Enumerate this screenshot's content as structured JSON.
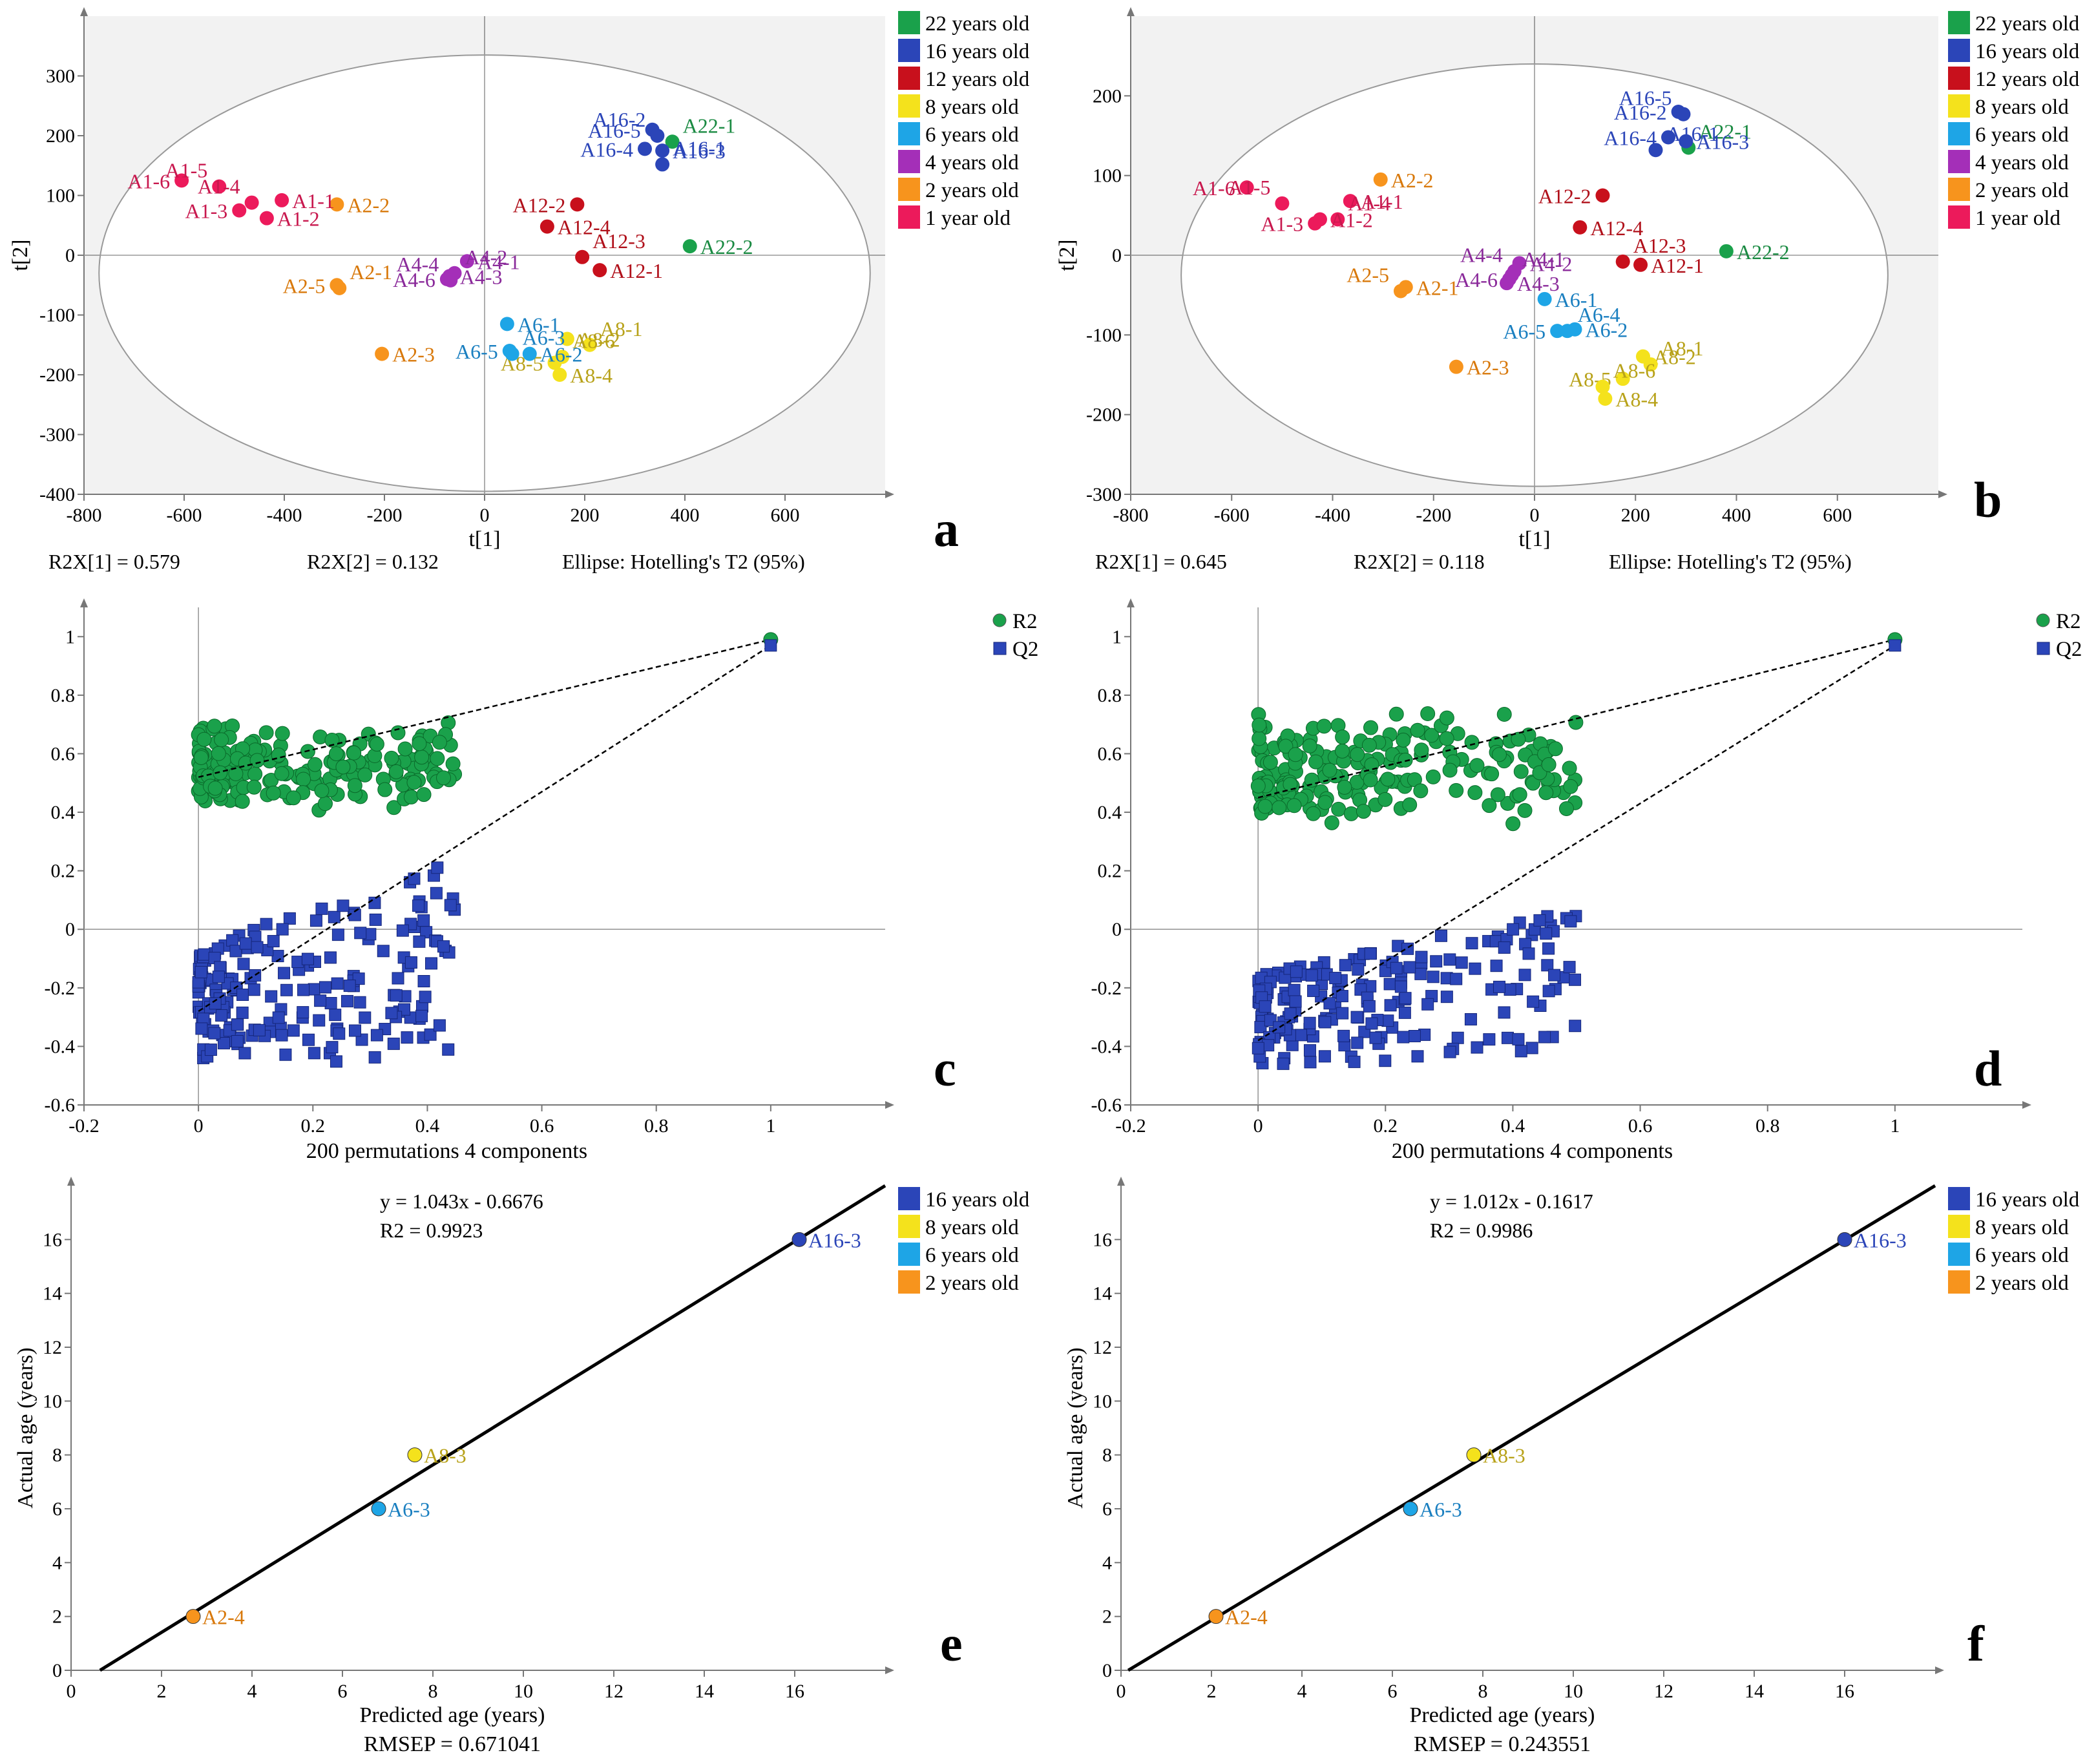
{
  "colors": {
    "y22": "#1aa14b",
    "y16": "#2b45b8",
    "y12": "#c8101c",
    "y8": "#f4e21c",
    "y6": "#1ea5e6",
    "y4": "#a42fb8",
    "y2": "#f7941d",
    "y1": "#ec1a5b",
    "R2": "#1aa14b",
    "Q2": "#2b45b8"
  },
  "chart_data": [
    {
      "panel": "a",
      "type": "scatter",
      "xlabel": "t[1]",
      "ylabel": "t[2]",
      "xlim": [
        -800,
        800
      ],
      "ylim": [
        -400,
        400
      ],
      "xticks": [
        -800,
        -600,
        -400,
        -200,
        0,
        200,
        400,
        600
      ],
      "yticks": [
        -400,
        -300,
        -200,
        -100,
        0,
        100,
        200,
        300
      ],
      "ellipse": {
        "cx": 0,
        "cy": -30,
        "rx": 770,
        "ry": 365
      },
      "stats": [
        "R2X[1] = 0.579",
        "R2X[2] = 0.132",
        "Ellipse: Hotelling's T2 (95%)"
      ],
      "legend": [
        {
          "label": "22 years old",
          "color": "#1aa14b"
        },
        {
          "label": "16 years old",
          "color": "#2b45b8"
        },
        {
          "label": "12 years old",
          "color": "#c8101c"
        },
        {
          "label": "8 years old",
          "color": "#f4e21c"
        },
        {
          "label": "6 years old",
          "color": "#1ea5e6"
        },
        {
          "label": "4 years old",
          "color": "#a42fb8"
        },
        {
          "label": "2 years old",
          "color": "#f7941d"
        },
        {
          "label": "1 year old",
          "color": "#ec1a5b"
        }
      ],
      "points": [
        {
          "label": "A22-1",
          "x": 375,
          "y": 190,
          "g": "y22"
        },
        {
          "label": "A22-2",
          "x": 410,
          "y": 15,
          "g": "y22"
        },
        {
          "label": "A16-5",
          "x": 335,
          "y": 210,
          "g": "y16"
        },
        {
          "label": "A16-2",
          "x": 345,
          "y": 200,
          "g": "y16"
        },
        {
          "label": "A16-4",
          "x": 320,
          "y": 178,
          "g": "y16"
        },
        {
          "label": "A16-3",
          "x": 355,
          "y": 175,
          "g": "y16"
        },
        {
          "label": "A16-1",
          "x": 355,
          "y": 152,
          "g": "y16"
        },
        {
          "label": "A12-2",
          "x": 185,
          "y": 85,
          "g": "y12"
        },
        {
          "label": "A12-4",
          "x": 125,
          "y": 48,
          "g": "y12"
        },
        {
          "label": "A12-3",
          "x": 195,
          "y": -3,
          "g": "y12"
        },
        {
          "label": "A12-1",
          "x": 230,
          "y": -25,
          "g": "y12"
        },
        {
          "label": "A8-2",
          "x": 165,
          "y": -140,
          "g": "y8"
        },
        {
          "label": "A8-1",
          "x": 210,
          "y": -150,
          "g": "y8"
        },
        {
          "label": "A8-5",
          "x": 140,
          "y": -180,
          "g": "y8"
        },
        {
          "label": "A8-4",
          "x": 150,
          "y": -200,
          "g": "y8"
        },
        {
          "label": "A8-6",
          "x": 155,
          "y": -170,
          "g": "y8"
        },
        {
          "label": "A6-1",
          "x": 45,
          "y": -115,
          "g": "y6"
        },
        {
          "label": "A6-2",
          "x": 90,
          "y": -165,
          "g": "y6"
        },
        {
          "label": "A6-3",
          "x": 55,
          "y": -165,
          "g": "y6"
        },
        {
          "label": "A6-5",
          "x": 50,
          "y": -160,
          "g": "y6"
        },
        {
          "label": "A4-1",
          "x": -35,
          "y": -10,
          "g": "y4"
        },
        {
          "label": "A4-2",
          "x": -60,
          "y": -30,
          "g": "y4"
        },
        {
          "label": "A4-3",
          "x": -70,
          "y": -35,
          "g": "y4"
        },
        {
          "label": "A4-6",
          "x": -75,
          "y": -40,
          "g": "y4"
        },
        {
          "label": "A4-4",
          "x": -68,
          "y": -42,
          "g": "y4"
        },
        {
          "label": "A2-2",
          "x": -295,
          "y": 85,
          "g": "y2"
        },
        {
          "label": "A2-5",
          "x": -295,
          "y": -50,
          "g": "y2"
        },
        {
          "label": "A2-1",
          "x": -290,
          "y": -55,
          "g": "y2"
        },
        {
          "label": "A2-3",
          "x": -205,
          "y": -165,
          "g": "y2"
        },
        {
          "label": "A1-6",
          "x": -605,
          "y": 125,
          "g": "y1"
        },
        {
          "label": "A1-5",
          "x": -530,
          "y": 115,
          "g": "y1"
        },
        {
          "label": "A1-1",
          "x": -405,
          "y": 92,
          "g": "y1"
        },
        {
          "label": "A1-3",
          "x": -490,
          "y": 75,
          "g": "y1"
        },
        {
          "label": "A1-4",
          "x": -465,
          "y": 88,
          "g": "y1"
        },
        {
          "label": "A1-2",
          "x": -435,
          "y": 62,
          "g": "y1"
        }
      ]
    },
    {
      "panel": "b",
      "type": "scatter",
      "xlabel": "t[1]",
      "ylabel": "t[2]",
      "xlim": [
        -800,
        800
      ],
      "ylim": [
        -300,
        300
      ],
      "xticks": [
        -800,
        -600,
        -400,
        -200,
        0,
        200,
        400,
        600
      ],
      "yticks": [
        -300,
        -200,
        -100,
        0,
        100,
        200
      ],
      "ellipse": {
        "cx": 0,
        "cy": -25,
        "rx": 700,
        "ry": 265
      },
      "stats": [
        "R2X[1] = 0.645",
        "R2X[2] = 0.118",
        "Ellipse: Hotelling's T2 (95%)"
      ],
      "legend": [
        {
          "label": "22 years old",
          "color": "#1aa14b"
        },
        {
          "label": "16 years old",
          "color": "#2b45b8"
        },
        {
          "label": "12 years old",
          "color": "#c8101c"
        },
        {
          "label": "8 years old",
          "color": "#f4e21c"
        },
        {
          "label": "6 years old",
          "color": "#1ea5e6"
        },
        {
          "label": "4 years old",
          "color": "#a42fb8"
        },
        {
          "label": "2 years old",
          "color": "#f7941d"
        },
        {
          "label": "1 year old",
          "color": "#ec1a5b"
        }
      ],
      "points": [
        {
          "label": "A22-1",
          "x": 305,
          "y": 135,
          "g": "y22"
        },
        {
          "label": "A22-2",
          "x": 380,
          "y": 5,
          "g": "y22"
        },
        {
          "label": "A16-2",
          "x": 285,
          "y": 180,
          "g": "y16"
        },
        {
          "label": "A16-5",
          "x": 295,
          "y": 177,
          "g": "y16"
        },
        {
          "label": "A16-4",
          "x": 265,
          "y": 148,
          "g": "y16"
        },
        {
          "label": "A16-3",
          "x": 300,
          "y": 143,
          "g": "y16"
        },
        {
          "label": "A16-1",
          "x": 240,
          "y": 132,
          "g": "y16"
        },
        {
          "label": "A12-2",
          "x": 135,
          "y": 75,
          "g": "y12"
        },
        {
          "label": "A12-4",
          "x": 90,
          "y": 35,
          "g": "y12"
        },
        {
          "label": "A12-3",
          "x": 175,
          "y": -8,
          "g": "y12"
        },
        {
          "label": "A12-1",
          "x": 210,
          "y": -12,
          "g": "y12"
        },
        {
          "label": "A8-2",
          "x": 215,
          "y": -127,
          "g": "y8"
        },
        {
          "label": "A8-1",
          "x": 230,
          "y": -137,
          "g": "y8"
        },
        {
          "label": "A8-5",
          "x": 175,
          "y": -155,
          "g": "y8"
        },
        {
          "label": "A8-4",
          "x": 140,
          "y": -180,
          "g": "y8"
        },
        {
          "label": "A8-6",
          "x": 135,
          "y": -165,
          "g": "y8"
        },
        {
          "label": "A6-1",
          "x": 20,
          "y": -55,
          "g": "y6"
        },
        {
          "label": "A6-2",
          "x": 80,
          "y": -93,
          "g": "y6"
        },
        {
          "label": "A6-4",
          "x": 65,
          "y": -95,
          "g": "y6"
        },
        {
          "label": "A6-5",
          "x": 45,
          "y": -95,
          "g": "y6"
        },
        {
          "label": "A4-2",
          "x": -30,
          "y": -10,
          "g": "y4"
        },
        {
          "label": "A4-1",
          "x": -45,
          "y": -25,
          "g": "y4"
        },
        {
          "label": "A4-3",
          "x": -55,
          "y": -35,
          "g": "y4"
        },
        {
          "label": "A4-6",
          "x": -50,
          "y": -30,
          "g": "y4"
        },
        {
          "label": "A4-4",
          "x": -40,
          "y": -20,
          "g": "y4"
        },
        {
          "label": "A2-2",
          "x": -305,
          "y": 95,
          "g": "y2"
        },
        {
          "label": "A2-1",
          "x": -255,
          "y": -40,
          "g": "y2"
        },
        {
          "label": "A2-5",
          "x": -265,
          "y": -45,
          "g": "y2"
        },
        {
          "label": "A2-3",
          "x": -155,
          "y": -140,
          "g": "y2"
        },
        {
          "label": "A1-6",
          "x": -570,
          "y": 85,
          "g": "y1"
        },
        {
          "label": "A1-5",
          "x": -500,
          "y": 65,
          "g": "y1"
        },
        {
          "label": "A1-1",
          "x": -365,
          "y": 68,
          "g": "y1"
        },
        {
          "label": "A1-3",
          "x": -435,
          "y": 40,
          "g": "y1"
        },
        {
          "label": "A1-4",
          "x": -390,
          "y": 45,
          "g": "y1"
        },
        {
          "label": "A1-2",
          "x": -425,
          "y": 45,
          "g": "y1"
        }
      ]
    },
    {
      "panel": "c",
      "type": "scatter",
      "xlabel": "200 permutations 4 components",
      "xlim": [
        -0.2,
        1.2
      ],
      "ylim": [
        -0.6,
        1.1
      ],
      "xticks": [
        -0.2,
        0,
        0.2,
        0.4,
        0.6,
        0.8,
        1
      ],
      "yticks": [
        -0.6,
        -0.4,
        -0.2,
        0,
        0.2,
        0.4,
        0.6,
        0.8,
        1
      ],
      "legend": [
        {
          "label": "R2",
          "color": "#1aa14b"
        },
        {
          "label": "Q2",
          "color": "#2b45b8"
        }
      ],
      "permutations": 200,
      "r2_cloud": {
        "x_range": [
          0,
          0.45
        ],
        "y_range": [
          0.38,
          0.74
        ]
      },
      "q2_cloud": {
        "x_range": [
          0,
          0.45
        ],
        "y_range": [
          -0.46,
          0.26
        ]
      },
      "r2_original": [
        1,
        0.99
      ],
      "q2_original": [
        1,
        0.97
      ],
      "r2_intercept_line": [
        [
          0,
          0.52
        ],
        [
          1,
          0.99
        ]
      ],
      "q2_intercept_line": [
        [
          0,
          -0.28
        ],
        [
          1,
          0.97
        ]
      ]
    },
    {
      "panel": "d",
      "type": "scatter",
      "xlabel": "200 permutations 4 components",
      "xlim": [
        -0.2,
        1.2
      ],
      "ylim": [
        -0.6,
        1.1
      ],
      "xticks": [
        -0.2,
        0,
        0.2,
        0.4,
        0.6,
        0.8,
        1
      ],
      "yticks": [
        -0.6,
        -0.4,
        -0.2,
        0,
        0.2,
        0.4,
        0.6,
        0.8,
        1
      ],
      "legend": [
        {
          "label": "R2",
          "color": "#1aa14b"
        },
        {
          "label": "Q2",
          "color": "#2b45b8"
        }
      ],
      "permutations": 200,
      "r2_cloud": {
        "x_range": [
          0,
          0.51
        ],
        "y_range": [
          0.3,
          0.81
        ]
      },
      "q2_cloud": {
        "x_range": [
          0,
          0.51
        ],
        "y_range": [
          -0.46,
          0.09
        ]
      },
      "r2_original": [
        1,
        0.99
      ],
      "q2_original": [
        1,
        0.97
      ],
      "r2_intercept_line": [
        [
          0,
          0.45
        ],
        [
          1,
          0.99
        ]
      ],
      "q2_intercept_line": [
        [
          0,
          -0.38
        ],
        [
          1,
          0.97
        ]
      ]
    },
    {
      "panel": "e",
      "type": "scatter",
      "xlabel": "Predicted age (years)",
      "ylabel": "Actual age (years)",
      "xlim": [
        0,
        18
      ],
      "ylim": [
        0,
        18
      ],
      "xticks": [
        0,
        2,
        4,
        6,
        8,
        10,
        12,
        14,
        16
      ],
      "yticks": [
        0,
        2,
        4,
        6,
        8,
        10,
        12,
        14,
        16
      ],
      "equation": "y = 1.043x - 0.6676",
      "r2_text": "R2 = 0.9923",
      "rmsep": "RMSEP = 0.671041",
      "fit": {
        "slope": 1.043,
        "intercept": -0.6676
      },
      "legend": [
        {
          "label": "16 years old",
          "color": "#2b45b8"
        },
        {
          "label": "8 years old",
          "color": "#f4e21c"
        },
        {
          "label": "6 years old",
          "color": "#1ea5e6"
        },
        {
          "label": "2 years old",
          "color": "#f7941d"
        }
      ],
      "points": [
        {
          "label": "A16-3",
          "x": 16.1,
          "y": 16,
          "g": "y16"
        },
        {
          "label": "A8-3",
          "x": 7.6,
          "y": 8,
          "g": "y8"
        },
        {
          "label": "A6-3",
          "x": 6.8,
          "y": 6,
          "g": "y6"
        },
        {
          "label": "A2-4",
          "x": 2.7,
          "y": 2,
          "g": "y2"
        }
      ]
    },
    {
      "panel": "f",
      "type": "scatter",
      "xlabel": "Predicted age (years)",
      "ylabel": "Actual age (years)",
      "xlim": [
        0,
        18
      ],
      "ylim": [
        0,
        18
      ],
      "xticks": [
        0,
        2,
        4,
        6,
        8,
        10,
        12,
        14,
        16
      ],
      "yticks": [
        0,
        2,
        4,
        6,
        8,
        10,
        12,
        14,
        16
      ],
      "equation": "y = 1.012x - 0.1617",
      "r2_text": "R2 = 0.9986",
      "rmsep": "RMSEP = 0.243551",
      "fit": {
        "slope": 1.012,
        "intercept": -0.1617
      },
      "legend": [
        {
          "label": "16 years old",
          "color": "#2b45b8"
        },
        {
          "label": "8 years old",
          "color": "#f4e21c"
        },
        {
          "label": "6 years old",
          "color": "#1ea5e6"
        },
        {
          "label": "2 years old",
          "color": "#f7941d"
        }
      ],
      "points": [
        {
          "label": "A16-3",
          "x": 16.0,
          "y": 16,
          "g": "y16"
        },
        {
          "label": "A8-3",
          "x": 7.8,
          "y": 8,
          "g": "y8"
        },
        {
          "label": "A6-3",
          "x": 6.4,
          "y": 6,
          "g": "y6"
        },
        {
          "label": "A2-4",
          "x": 2.1,
          "y": 2,
          "g": "y2"
        }
      ]
    }
  ]
}
